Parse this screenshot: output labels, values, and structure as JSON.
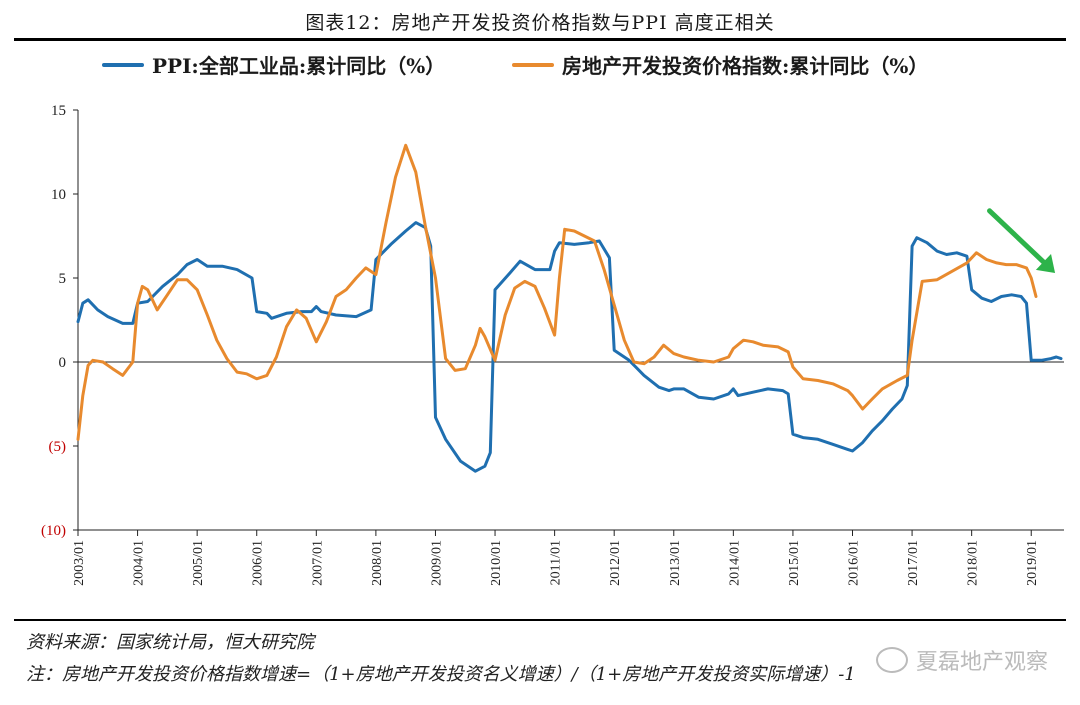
{
  "figure": {
    "title": "图表12：房地产开发投资价格指数与PPI 高度正相关",
    "source": "资料来源：国家统计局，恒大研究院",
    "note": "注：房地产开发投资价格指数增速=（1+房地产开发投资名义增速）/（1+房地产开发投资实际增速）-1",
    "watermark": "夏磊地产观察"
  },
  "chart_data": {
    "type": "line",
    "title": "图表12：房地产开发投资价格指数与PPI 高度正相关",
    "xlabel": "",
    "ylabel": "",
    "ylim": [
      -10,
      15
    ],
    "yticks": [
      15,
      10,
      5,
      0,
      -5,
      -10
    ],
    "ytick_labels": [
      "15",
      "10",
      "5",
      "0",
      "(5)",
      "(10)"
    ],
    "xlim": [
      2003.0,
      2019.55
    ],
    "xticks": [
      2003,
      2004,
      2005,
      2006,
      2007,
      2008,
      2009,
      2010,
      2011,
      2012,
      2013,
      2014,
      2015,
      2016,
      2017,
      2018,
      2019
    ],
    "xtick_labels": [
      "2003/01",
      "2004/01",
      "2005/01",
      "2006/01",
      "2007/01",
      "2008/01",
      "2009/01",
      "2010/01",
      "2011/01",
      "2012/01",
      "2013/01",
      "2014/01",
      "2015/01",
      "2016/01",
      "2017/01",
      "2018/01",
      "2019/01"
    ],
    "grid": false,
    "legend_position": "top",
    "negative_tick_color": "#c00000",
    "series": [
      {
        "name": "PPI:全部工业品:累计同比（%）",
        "color": "#1f6fb0",
        "points": [
          [
            2003.0,
            2.4
          ],
          [
            2003.08,
            3.5
          ],
          [
            2003.17,
            3.7
          ],
          [
            2003.33,
            3.1
          ],
          [
            2003.5,
            2.7
          ],
          [
            2003.75,
            2.3
          ],
          [
            2003.92,
            2.3
          ],
          [
            2004.0,
            3.5
          ],
          [
            2004.17,
            3.6
          ],
          [
            2004.42,
            4.5
          ],
          [
            2004.67,
            5.2
          ],
          [
            2004.83,
            5.8
          ],
          [
            2005.0,
            6.1
          ],
          [
            2005.17,
            5.7
          ],
          [
            2005.42,
            5.7
          ],
          [
            2005.67,
            5.5
          ],
          [
            2005.92,
            5.0
          ],
          [
            2006.0,
            3.0
          ],
          [
            2006.17,
            2.9
          ],
          [
            2006.25,
            2.6
          ],
          [
            2006.5,
            2.9
          ],
          [
            2006.75,
            3.0
          ],
          [
            2006.92,
            3.0
          ],
          [
            2007.0,
            3.3
          ],
          [
            2007.08,
            3.0
          ],
          [
            2007.33,
            2.8
          ],
          [
            2007.67,
            2.7
          ],
          [
            2007.92,
            3.1
          ],
          [
            2008.0,
            6.1
          ],
          [
            2008.25,
            7.0
          ],
          [
            2008.5,
            7.8
          ],
          [
            2008.67,
            8.3
          ],
          [
            2008.83,
            8.0
          ],
          [
            2008.92,
            6.9
          ],
          [
            2009.0,
            -3.3
          ],
          [
            2009.17,
            -4.6
          ],
          [
            2009.42,
            -5.9
          ],
          [
            2009.67,
            -6.5
          ],
          [
            2009.83,
            -6.2
          ],
          [
            2009.92,
            -5.4
          ],
          [
            2010.0,
            4.3
          ],
          [
            2010.25,
            5.3
          ],
          [
            2010.42,
            6.0
          ],
          [
            2010.67,
            5.5
          ],
          [
            2010.92,
            5.5
          ],
          [
            2011.0,
            6.6
          ],
          [
            2011.08,
            7.1
          ],
          [
            2011.33,
            7.0
          ],
          [
            2011.58,
            7.1
          ],
          [
            2011.75,
            7.2
          ],
          [
            2011.92,
            6.2
          ],
          [
            2012.0,
            0.7
          ],
          [
            2012.25,
            0.1
          ],
          [
            2012.5,
            -0.8
          ],
          [
            2012.75,
            -1.5
          ],
          [
            2012.92,
            -1.7
          ],
          [
            2013.0,
            -1.6
          ],
          [
            2013.17,
            -1.6
          ],
          [
            2013.42,
            -2.1
          ],
          [
            2013.67,
            -2.2
          ],
          [
            2013.92,
            -1.9
          ],
          [
            2014.0,
            -1.6
          ],
          [
            2014.08,
            -2.0
          ],
          [
            2014.33,
            -1.8
          ],
          [
            2014.58,
            -1.6
          ],
          [
            2014.83,
            -1.7
          ],
          [
            2014.92,
            -1.9
          ],
          [
            2015.0,
            -4.3
          ],
          [
            2015.17,
            -4.5
          ],
          [
            2015.42,
            -4.6
          ],
          [
            2015.67,
            -4.9
          ],
          [
            2015.92,
            -5.2
          ],
          [
            2016.0,
            -5.3
          ],
          [
            2016.17,
            -4.8
          ],
          [
            2016.33,
            -4.1
          ],
          [
            2016.5,
            -3.5
          ],
          [
            2016.67,
            -2.8
          ],
          [
            2016.83,
            -2.2
          ],
          [
            2016.92,
            -1.4
          ],
          [
            2017.0,
            6.9
          ],
          [
            2017.08,
            7.4
          ],
          [
            2017.25,
            7.1
          ],
          [
            2017.42,
            6.6
          ],
          [
            2017.58,
            6.4
          ],
          [
            2017.75,
            6.5
          ],
          [
            2017.92,
            6.3
          ],
          [
            2018.0,
            4.3
          ],
          [
            2018.17,
            3.8
          ],
          [
            2018.33,
            3.6
          ],
          [
            2018.5,
            3.9
          ],
          [
            2018.67,
            4.0
          ],
          [
            2018.83,
            3.9
          ],
          [
            2018.92,
            3.5
          ],
          [
            2019.0,
            0.1
          ],
          [
            2019.17,
            0.1
          ],
          [
            2019.33,
            0.2
          ],
          [
            2019.42,
            0.3
          ],
          [
            2019.5,
            0.2
          ]
        ]
      },
      {
        "name": "房地产开发投资价格指数:累计同比（%）",
        "color": "#e88a2e",
        "points": [
          [
            2003.0,
            -4.6
          ],
          [
            2003.08,
            -2.0
          ],
          [
            2003.17,
            -0.2
          ],
          [
            2003.25,
            0.1
          ],
          [
            2003.42,
            0.0
          ],
          [
            2003.58,
            -0.4
          ],
          [
            2003.75,
            -0.8
          ],
          [
            2003.92,
            0.0
          ],
          [
            2004.0,
            3.5
          ],
          [
            2004.08,
            4.5
          ],
          [
            2004.17,
            4.3
          ],
          [
            2004.33,
            3.1
          ],
          [
            2004.5,
            4.0
          ],
          [
            2004.67,
            4.9
          ],
          [
            2004.83,
            4.9
          ],
          [
            2005.0,
            4.3
          ],
          [
            2005.17,
            2.8
          ],
          [
            2005.33,
            1.3
          ],
          [
            2005.5,
            0.2
          ],
          [
            2005.67,
            -0.6
          ],
          [
            2005.83,
            -0.7
          ],
          [
            2006.0,
            -1.0
          ],
          [
            2006.17,
            -0.8
          ],
          [
            2006.33,
            0.3
          ],
          [
            2006.5,
            2.1
          ],
          [
            2006.67,
            3.1
          ],
          [
            2006.83,
            2.6
          ],
          [
            2007.0,
            1.2
          ],
          [
            2007.17,
            2.4
          ],
          [
            2007.33,
            3.9
          ],
          [
            2007.5,
            4.3
          ],
          [
            2007.67,
            5.0
          ],
          [
            2007.83,
            5.6
          ],
          [
            2008.0,
            5.2
          ],
          [
            2008.17,
            8.3
          ],
          [
            2008.33,
            11.0
          ],
          [
            2008.5,
            12.9
          ],
          [
            2008.67,
            11.3
          ],
          [
            2008.83,
            8.1
          ],
          [
            2009.0,
            5.0
          ],
          [
            2009.17,
            0.2
          ],
          [
            2009.33,
            -0.5
          ],
          [
            2009.5,
            -0.4
          ],
          [
            2009.67,
            1.0
          ],
          [
            2009.75,
            2.0
          ],
          [
            2009.83,
            1.5
          ],
          [
            2010.0,
            0.1
          ],
          [
            2010.17,
            2.8
          ],
          [
            2010.33,
            4.4
          ],
          [
            2010.5,
            4.8
          ],
          [
            2010.67,
            4.5
          ],
          [
            2010.83,
            3.2
          ],
          [
            2011.0,
            1.6
          ],
          [
            2011.08,
            5.0
          ],
          [
            2011.17,
            7.9
          ],
          [
            2011.33,
            7.8
          ],
          [
            2011.5,
            7.5
          ],
          [
            2011.67,
            7.2
          ],
          [
            2011.83,
            5.5
          ],
          [
            2012.0,
            3.4
          ],
          [
            2012.17,
            1.3
          ],
          [
            2012.33,
            0.0
          ],
          [
            2012.5,
            -0.1
          ],
          [
            2012.67,
            0.3
          ],
          [
            2012.83,
            1.0
          ],
          [
            2013.0,
            0.5
          ],
          [
            2013.17,
            0.3
          ],
          [
            2013.42,
            0.1
          ],
          [
            2013.67,
            0.0
          ],
          [
            2013.92,
            0.3
          ],
          [
            2014.0,
            0.8
          ],
          [
            2014.17,
            1.3
          ],
          [
            2014.33,
            1.2
          ],
          [
            2014.5,
            1.0
          ],
          [
            2014.75,
            0.9
          ],
          [
            2014.92,
            0.6
          ],
          [
            2015.0,
            -0.3
          ],
          [
            2015.17,
            -1.0
          ],
          [
            2015.42,
            -1.1
          ],
          [
            2015.67,
            -1.3
          ],
          [
            2015.92,
            -1.7
          ],
          [
            2016.0,
            -2.0
          ],
          [
            2016.17,
            -2.8
          ],
          [
            2016.33,
            -2.2
          ],
          [
            2016.5,
            -1.6
          ],
          [
            2016.75,
            -1.1
          ],
          [
            2016.92,
            -0.8
          ],
          [
            2017.0,
            1.3
          ],
          [
            2017.17,
            4.8
          ],
          [
            2017.42,
            4.9
          ],
          [
            2017.67,
            5.4
          ],
          [
            2017.92,
            5.9
          ],
          [
            2018.0,
            6.2
          ],
          [
            2018.08,
            6.5
          ],
          [
            2018.25,
            6.1
          ],
          [
            2018.42,
            5.9
          ],
          [
            2018.58,
            5.8
          ],
          [
            2018.75,
            5.8
          ],
          [
            2018.92,
            5.6
          ],
          [
            2019.0,
            5.0
          ],
          [
            2019.08,
            3.9
          ]
        ]
      }
    ],
    "annotation": {
      "type": "arrow",
      "color": "#2db34a",
      "from": [
        2018.3,
        9.0
      ],
      "to": [
        2019.4,
        5.3
      ]
    }
  }
}
